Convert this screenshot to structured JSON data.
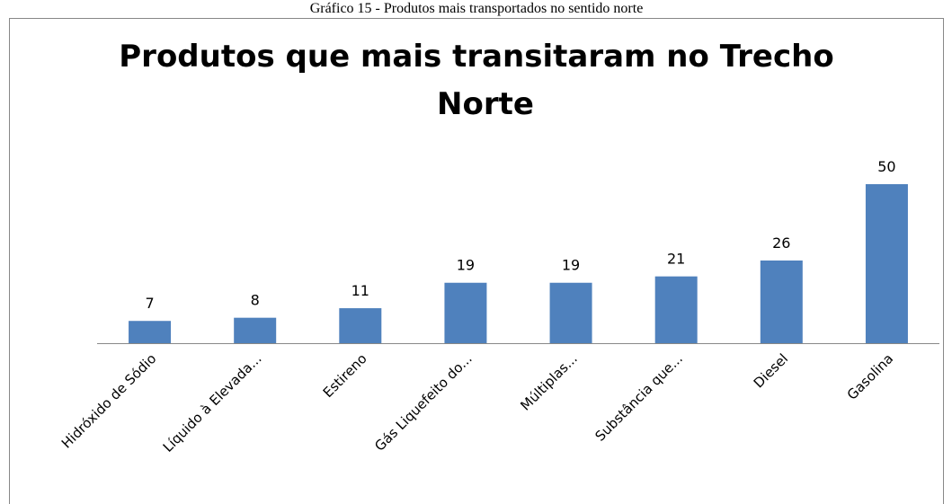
{
  "chart_data": {
    "type": "bar",
    "caption": "Gráfico 15 - Produtos mais transportados no sentido norte",
    "title_lines": [
      "Produtos que mais transitaram no Trecho",
      "Norte"
    ],
    "categories": [
      "Hidróxido de Sódio",
      "Líquido à Elevada...",
      "Estireno",
      "Gás Liquefeito do...",
      "Múltiplas...",
      "Substância que...",
      "Diesel",
      "Gasolina"
    ],
    "values": [
      7,
      8,
      11,
      19,
      19,
      21,
      26,
      50
    ],
    "color": "#4f81bd"
  }
}
